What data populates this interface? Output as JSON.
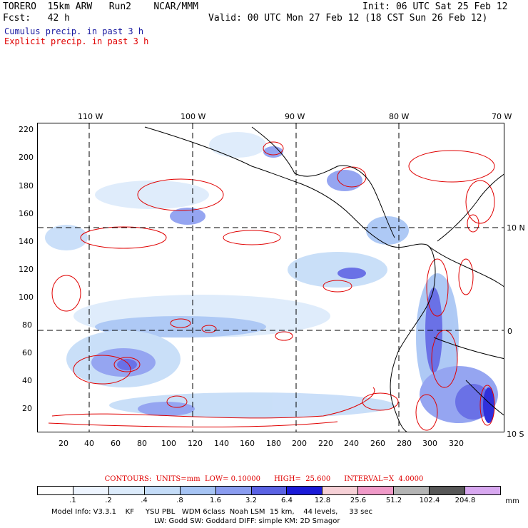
{
  "header": {
    "model": "TORERO  15km ARW   Run2    NCAR/MMM",
    "init": "Init: 06 UTC Sat 25 Feb 12",
    "fcst": "Fcst:   42 h",
    "valid": "Valid: 00 UTC Mon 27 Feb 12 (18 CST Sun 26 Feb 12)",
    "field_shaded": "Cumulus precip. in past 3 h",
    "field_contour": "Explicit precip. in past 3 h"
  },
  "map": {
    "lon_labels": [
      "110 W",
      "100 W",
      "90 W",
      "80 W",
      "70 W"
    ],
    "lat_labels": [
      "10 N",
      "0",
      "10 S"
    ],
    "y_ticks": [
      "220",
      "200",
      "180",
      "160",
      "140",
      "120",
      "100",
      "80",
      "60",
      "40",
      "20"
    ],
    "x_ticks": [
      "20",
      "40",
      "60",
      "80",
      "100",
      "120",
      "140",
      "160",
      "180",
      "200",
      "220",
      "240",
      "260",
      "280",
      "300",
      "320"
    ]
  },
  "contours_info": {
    "text": "CONTOURS:  UNITS=mm  LOW= 0.10000      HIGH=  25.600      INTERVAL=X  4.0000"
  },
  "colorbar": {
    "labels": [
      ".1",
      ".2",
      ".4",
      ".8",
      "1.6",
      "3.2",
      "6.4",
      "12.8",
      "25.6",
      "51.2",
      "102.4",
      "204.8"
    ],
    "unit": "mm",
    "colors": [
      "#ffffff",
      "#eef5ff",
      "#dcebfb",
      "#c4dcf8",
      "#a6c4f4",
      "#8a9cf0",
      "#5a62e4",
      "#1a1ad8",
      "#f6d0d6",
      "#f09ac8",
      "#b4b4b4",
      "#585858",
      "#d8a8f0"
    ]
  },
  "footer": {
    "line1": "Model Info: V3.3.1    KF     YSU PBL   WDM 6class  Noah LSM  15 km,    44 levels,     33 sec",
    "line2": "LW: Godd SW: Goddard DIFF: simple KM: 2D Smagor"
  }
}
